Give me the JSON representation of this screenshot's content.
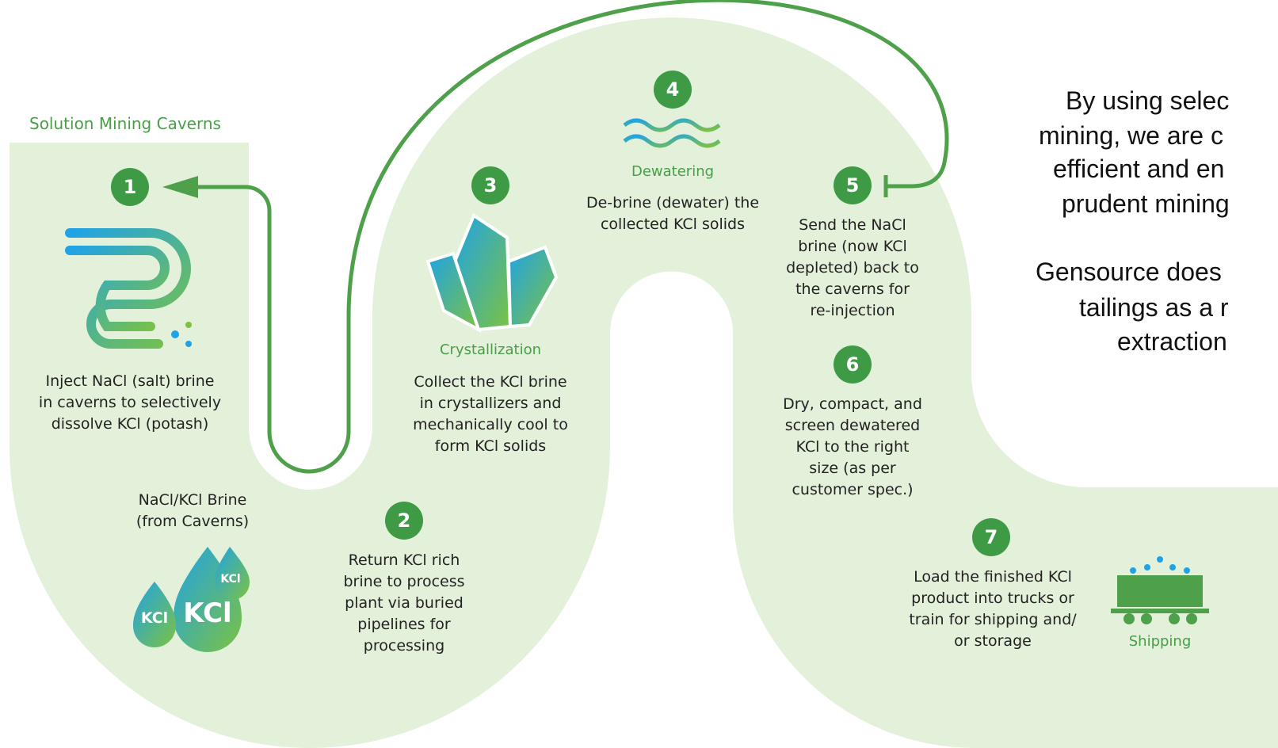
{
  "title": "Solution Mining Caverns",
  "steps": [
    {
      "number": "1",
      "lines": [
        "Inject NaCl (salt) brine",
        "in caverns to selectively",
        "dissolve KCl (potash)"
      ]
    },
    {
      "number": "2",
      "lines": [
        "Return KCl rich",
        "brine to process",
        "plant via buried",
        "pipelines for",
        "processing"
      ]
    },
    {
      "number": "3",
      "label": "Crystallization",
      "lines": [
        "Collect the KCl brine",
        "in crystallizers and",
        "mechanically cool to",
        "form KCl solids"
      ]
    },
    {
      "number": "4",
      "label": "Dewatering",
      "lines": [
        "De-brine (dewater) the",
        "collected KCl solids"
      ]
    },
    {
      "number": "5",
      "lines": [
        "Send the NaCl",
        "brine (now KCl",
        "depleted) back to",
        "the caverns for",
        "re-injection"
      ]
    },
    {
      "number": "6",
      "lines": [
        "Dry, compact, and",
        "screen dewatered",
        "KCl to the right",
        "size (as per",
        "customer spec.)"
      ]
    },
    {
      "number": "7",
      "label": "Shipping",
      "lines": [
        "Load the finished KCl",
        "product into trucks or",
        "train for shipping and/",
        "or storage"
      ]
    }
  ],
  "brine_label": [
    "NaCl/KCl Brine",
    "(from Caverns)"
  ],
  "drop_labels": [
    "KCl",
    "KCl",
    "KCl"
  ],
  "side_text": [
    "By using selec",
    "mining, we are c",
    "efficient and en",
    "prudent mining",
    "Gensource does",
    "tailings as a r",
    "extraction"
  ]
}
